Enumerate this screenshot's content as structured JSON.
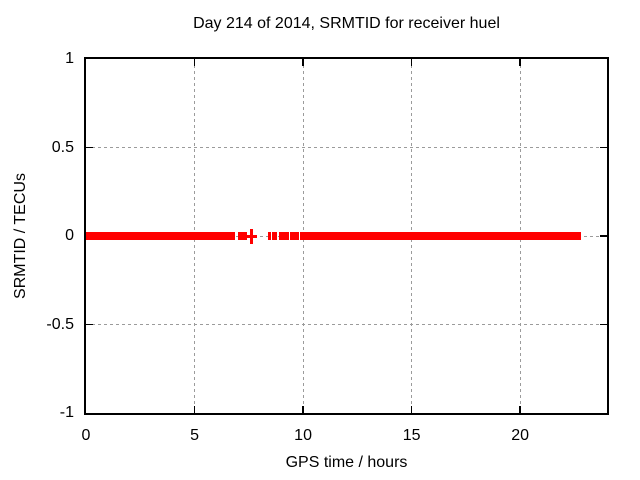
{
  "chart_data": {
    "type": "scatter",
    "title": "Day 214 of 2014, SRMTID for receiver huel",
    "xlabel": "GPS time / hours",
    "ylabel": "SRMTID / TECUs",
    "xlim": [
      0,
      24
    ],
    "ylim": [
      -1,
      1
    ],
    "xticks": [
      0,
      5,
      10,
      15,
      20
    ],
    "xtick_labels": [
      "0",
      "5",
      "10",
      "15",
      "20"
    ],
    "yticks": [
      1,
      0.5,
      0,
      -0.5,
      -1
    ],
    "ytick_labels": [
      "1",
      "0.5",
      "0",
      "-0.5",
      "-1"
    ],
    "grid": true,
    "grid_style": "dotted",
    "legend": "none",
    "marker_color": "#ff0000",
    "grid_color": "#9b9b9b",
    "border_color": "#000000",
    "background_color": "#ffffff",
    "series": [
      {
        "name": "SRMTID",
        "y": 0,
        "segments_x_hours": [
          [
            0,
            6.86
          ],
          [
            6.99,
            7.41
          ],
          [
            8.37,
            8.5
          ],
          [
            8.59,
            8.82
          ],
          [
            8.91,
            9.33
          ],
          [
            9.42,
            9.83
          ],
          [
            9.87,
            22.81
          ]
        ],
        "isolated_points_x_hours": [
          7.63
        ]
      }
    ]
  }
}
